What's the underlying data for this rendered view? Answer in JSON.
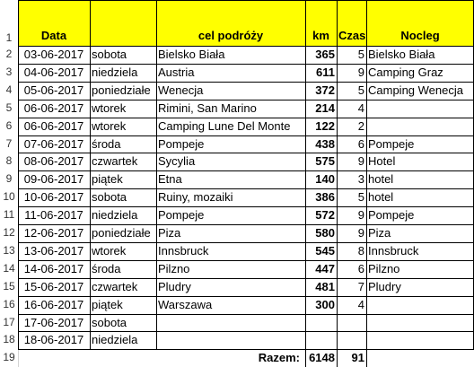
{
  "headers": {
    "date": "Data",
    "day": "",
    "destination": "cel podróży",
    "km": "km",
    "time": "Czas",
    "stay": "Nocleg"
  },
  "rows": [
    {
      "n": "2",
      "date": "03-06-2017",
      "day": "sobota",
      "dest": "Bielsko Biała",
      "km": "365",
      "time": "5",
      "stay": "Bielsko Biała"
    },
    {
      "n": "3",
      "date": "04-06-2017",
      "day": "niedziela",
      "dest": "Austria",
      "km": "611",
      "time": "9",
      "stay": "Camping Graz"
    },
    {
      "n": "4",
      "date": "05-06-2017",
      "day": "poniedziałe",
      "dest": "Wenecja",
      "km": "372",
      "time": "5",
      "stay": "Camping Wenecja"
    },
    {
      "n": "5",
      "date": "06-06-2017",
      "day": "wtorek",
      "dest": "Rimini, San Marino",
      "km": "214",
      "time": "4",
      "stay": ""
    },
    {
      "n": "6",
      "date": "06-06-2017",
      "day": "wtorek",
      "dest": "Camping Lune Del Monte",
      "km": "122",
      "time": "2",
      "stay": ""
    },
    {
      "n": "7",
      "date": "07-06-2017",
      "day": "środa",
      "dest": "Pompeje",
      "km": "438",
      "time": "6",
      "stay": "Pompeje"
    },
    {
      "n": "8",
      "date": "08-06-2017",
      "day": "czwartek",
      "dest": "Sycylia",
      "km": "575",
      "time": "9",
      "stay": "Hotel"
    },
    {
      "n": "9",
      "date": "09-06-2017",
      "day": "piątek",
      "dest": "Etna",
      "km": "140",
      "time": "3",
      "stay": "hotel"
    },
    {
      "n": "10",
      "date": "10-06-2017",
      "day": "sobota",
      "dest": "Ruiny, mozaiki",
      "km": "386",
      "time": "5",
      "stay": "hotel"
    },
    {
      "n": "11",
      "date": "11-06-2017",
      "day": "niedziela",
      "dest": "Pompeje",
      "km": "572",
      "time": "9",
      "stay": "Pompeje"
    },
    {
      "n": "12",
      "date": "12-06-2017",
      "day": "poniedziałe",
      "dest": "Piza",
      "km": "580",
      "time": "9",
      "stay": "Piza"
    },
    {
      "n": "13",
      "date": "13-06-2017",
      "day": "wtorek",
      "dest": "Innsbruck",
      "km": "545",
      "time": "8",
      "stay": "Innsbruck"
    },
    {
      "n": "14",
      "date": "14-06-2017",
      "day": "środa",
      "dest": "Pilzno",
      "km": "447",
      "time": "6",
      "stay": "Pilzno"
    },
    {
      "n": "15",
      "date": "15-06-2017",
      "day": "czwartek",
      "dest": "Pludry",
      "km": "481",
      "time": "7",
      "stay": "Pludry"
    },
    {
      "n": "16",
      "date": "16-06-2017",
      "day": "piątek",
      "dest": "Warszawa",
      "km": "300",
      "time": "4",
      "stay": ""
    },
    {
      "n": "17",
      "date": "17-06-2017",
      "day": "sobota",
      "dest": "",
      "km": "",
      "time": "",
      "stay": ""
    },
    {
      "n": "18",
      "date": "18-06-2017",
      "day": "niedziela",
      "dest": "",
      "km": "",
      "time": "",
      "stay": ""
    }
  ],
  "header_row_num": "1",
  "total_row": {
    "n": "19",
    "label": "Razem:",
    "km": "6148",
    "time": "91"
  },
  "colors": {
    "header_fill": "#ffff00",
    "grid": "#000000"
  }
}
